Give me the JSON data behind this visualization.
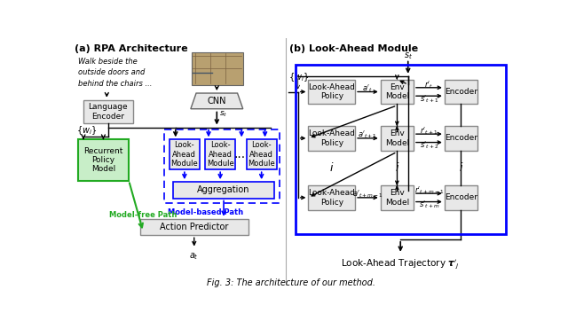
{
  "title": "Fig. 3: The architecture of our method.",
  "fig_width": 6.4,
  "fig_height": 3.62,
  "background_color": "#ffffff",
  "left_panel_title": "(a) RPA Architecture",
  "right_panel_title": "(b) Look-Ahead Module",
  "italic_text": "Walk beside the\noutside doors and\nbehind the chairs ...",
  "model_free_label": "Model-free Path",
  "model_based_label": "Model-based Path",
  "trajectory_label": "Look-Ahead Trajectory $\\boldsymbol{\\tau}'_j$",
  "green_color": "#22aa22",
  "blue_color": "#0000ff",
  "box_fill_light": "#e8e8e8",
  "box_fill_blue": "#d0d8ff",
  "box_fill_green": "#c8eec8",
  "box_edge_gray": "#888888",
  "box_edge_green": "#22aa22",
  "box_edge_blue": "#0000ff"
}
